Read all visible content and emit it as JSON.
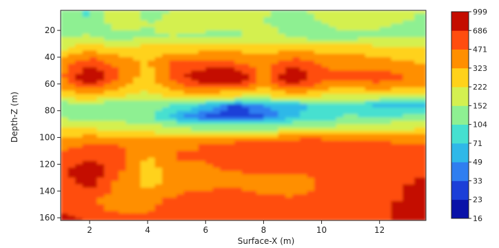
{
  "chart_data": {
    "type": "heatmap",
    "title": "",
    "xlabel": "Surface-X (m)",
    "ylabel": "Depth-Z (m)",
    "xlim": [
      1,
      13.6
    ],
    "ylim": [
      162,
      5
    ],
    "y_inverted": true,
    "grid": false,
    "xticks": [
      2,
      4,
      6,
      8,
      10,
      12
    ],
    "yticks": [
      20,
      40,
      60,
      80,
      100,
      120,
      140,
      160
    ],
    "x": [
      1,
      2,
      3,
      4,
      5,
      6,
      7,
      8,
      9,
      10,
      11,
      12,
      13.6
    ],
    "z": [
      5,
      15,
      25,
      35,
      45,
      55,
      65,
      75,
      85,
      95,
      105,
      115,
      125,
      135,
      145,
      155,
      162
    ],
    "values": [
      [
        130,
        90,
        220,
        130,
        160,
        190,
        180,
        160,
        130,
        170,
        150,
        200,
        150
      ],
      [
        140,
        110,
        180,
        150,
        170,
        170,
        160,
        150,
        140,
        150,
        180,
        160,
        140
      ],
      [
        150,
        160,
        120,
        150,
        150,
        140,
        140,
        180,
        140,
        120,
        130,
        140,
        150
      ],
      [
        220,
        300,
        250,
        280,
        280,
        300,
        300,
        300,
        300,
        300,
        300,
        260,
        240
      ],
      [
        400,
        600,
        420,
        300,
        550,
        500,
        500,
        380,
        600,
        450,
        400,
        380,
        320
      ],
      [
        420,
        1000,
        450,
        260,
        550,
        1000,
        1000,
        380,
        1000,
        520,
        520,
        600,
        380
      ],
      [
        300,
        400,
        300,
        220,
        350,
        380,
        350,
        280,
        400,
        300,
        280,
        300,
        280
      ],
      [
        120,
        150,
        110,
        140,
        100,
        70,
        28,
        50,
        60,
        80,
        100,
        60,
        45
      ],
      [
        140,
        130,
        120,
        110,
        50,
        28,
        25,
        30,
        70,
        80,
        110,
        100,
        120
      ],
      [
        250,
        240,
        210,
        200,
        180,
        160,
        150,
        160,
        170,
        180,
        200,
        220,
        240
      ],
      [
        400,
        480,
        460,
        420,
        420,
        480,
        520,
        550,
        650,
        650,
        550,
        520,
        480
      ],
      [
        500,
        650,
        550,
        300,
        500,
        480,
        500,
        560,
        550,
        520,
        500,
        480,
        500
      ],
      [
        600,
        900,
        500,
        250,
        380,
        450,
        480,
        500,
        500,
        480,
        500,
        480,
        650
      ],
      [
        550,
        800,
        380,
        300,
        350,
        380,
        400,
        300,
        400,
        480,
        500,
        500,
        800
      ],
      [
        500,
        500,
        400,
        400,
        500,
        600,
        700,
        500,
        480,
        500,
        500,
        520,
        900
      ],
      [
        650,
        500,
        460,
        460,
        600,
        700,
        550,
        520,
        500,
        500,
        550,
        600,
        950
      ],
      [
        800,
        650,
        500,
        550,
        650,
        650,
        600,
        560,
        700,
        550,
        550,
        600,
        900
      ]
    ],
    "colorbar": {
      "levels": [
        16,
        23,
        33,
        49,
        71,
        104,
        152,
        222,
        323,
        471,
        686,
        999
      ],
      "labels": [
        "999",
        "686",
        "471",
        "323",
        "222",
        "152",
        "104",
        "71",
        "49",
        "33",
        "23",
        "16"
      ],
      "colors": [
        "#0a12a8",
        "#1b3fd8",
        "#2f7ef0",
        "#2fb8e8",
        "#46e0d0",
        "#8ef092",
        "#d4f050",
        "#ffd21a",
        "#ff8f00",
        "#ff4d0f",
        "#c40c00"
      ]
    }
  }
}
